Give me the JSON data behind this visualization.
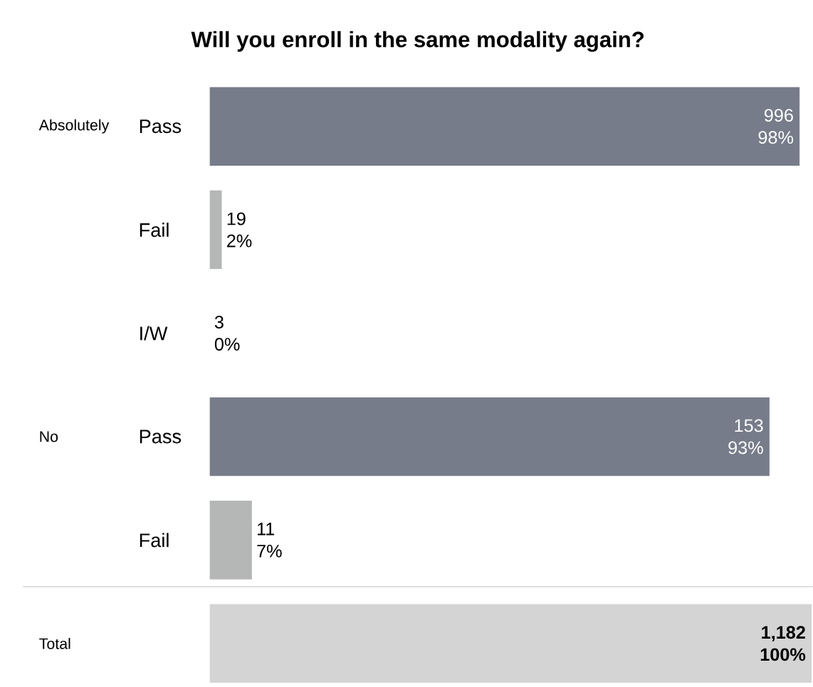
{
  "chart_data": {
    "type": "bar",
    "orientation": "horizontal",
    "title": "Will you enroll in the same modality again?",
    "categories": [
      "Pass",
      "Fail",
      "I/W",
      "Pass",
      "Fail",
      null
    ],
    "values": [
      98,
      2,
      0,
      93,
      7,
      100
    ],
    "colors": [
      "#777c8a",
      "#b4b7b6",
      "#b4b7b6",
      "#777c8a",
      "#b4b7b6",
      "#d4d4d4"
    ],
    "value_labels": [
      "996 98%",
      "19 2%",
      "3 0%",
      "153 93%",
      "11 7%",
      "1,182 100%"
    ],
    "annotations": [
      "Absolutely",
      "No",
      "Total"
    ]
  }
}
